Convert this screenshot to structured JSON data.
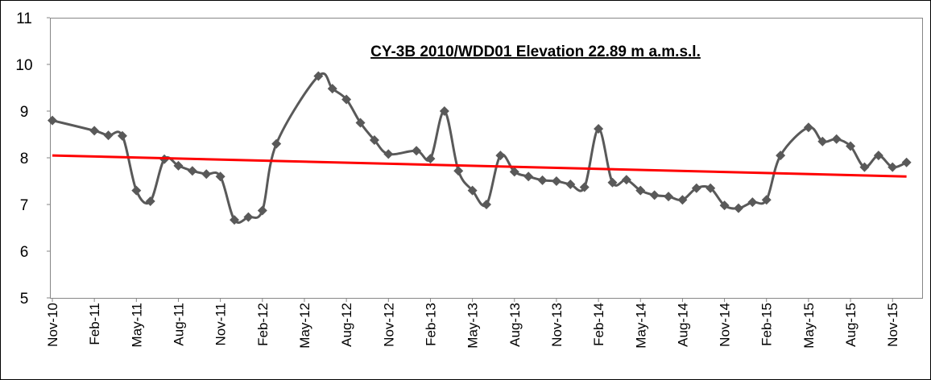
{
  "chart_data": {
    "type": "line",
    "title": "CY-3B 2010/WDD01 Elevation 22.89 m a.m.s.l.",
    "ylim": [
      5,
      11
    ],
    "yticks": [
      5,
      6,
      7,
      8,
      9,
      10,
      11
    ],
    "xlim": [
      "Nov-10",
      "Jan-16"
    ],
    "xticks": [
      "Nov-10",
      "Feb-11",
      "May-11",
      "Aug-11",
      "Nov-11",
      "Feb-12",
      "May-12",
      "Aug-12",
      "Nov-12",
      "Feb-13",
      "May-13",
      "Aug-13",
      "Nov-13",
      "Feb-14",
      "May-14",
      "Aug-14",
      "Nov-14",
      "Feb-15",
      "May-15",
      "Aug-15",
      "Nov-15"
    ],
    "series": [
      {
        "color": "#595959",
        "x": [
          "Nov-10",
          "Feb-11",
          "Mar-11",
          "Apr-11",
          "May-11",
          "Jun-11",
          "Jul-11",
          "Aug-11",
          "Sep-11",
          "Oct-11",
          "Nov-11",
          "Dec-11",
          "Jan-12",
          "Feb-12",
          "Mar-12",
          "Jun-12",
          "Jul-12",
          "Aug-12",
          "Sep-12",
          "Oct-12",
          "Nov-12",
          "Jan-13",
          "Feb-13",
          "Mar-13",
          "Apr-13",
          "May-13",
          "Jun-13",
          "Jul-13",
          "Aug-13",
          "Sep-13",
          "Oct-13",
          "Nov-13",
          "Dec-13",
          "Jan-14",
          "Feb-14",
          "Mar-14",
          "Apr-14",
          "May-14",
          "Jun-14",
          "Jul-14",
          "Aug-14",
          "Sep-14",
          "Oct-14",
          "Nov-14",
          "Dec-14",
          "Jan-15",
          "Feb-15",
          "Mar-15",
          "May-15",
          "Jun-15",
          "Jul-15",
          "Aug-15",
          "Sep-15",
          "Oct-15",
          "Nov-15",
          "Dec-15"
        ],
        "values": [
          8.8,
          8.58,
          8.48,
          8.47,
          7.3,
          7.07,
          7.97,
          7.83,
          7.72,
          7.65,
          7.6,
          6.67,
          6.73,
          6.87,
          8.3,
          9.75,
          9.48,
          9.25,
          8.75,
          8.38,
          8.08,
          8.15,
          7.98,
          9.0,
          7.72,
          7.3,
          7.0,
          8.05,
          7.7,
          7.6,
          7.52,
          7.5,
          7.43,
          7.37,
          8.62,
          7.47,
          7.53,
          7.3,
          7.2,
          7.17,
          7.1,
          7.35,
          7.35,
          6.98,
          6.92,
          7.05,
          7.1,
          8.05,
          8.65,
          8.35,
          8.4,
          8.25,
          7.8,
          8.05,
          7.8,
          7.9
        ]
      },
      {
        "color": "#ff0000",
        "x": [
          "Nov-10",
          "Dec-15"
        ],
        "values": [
          8.05,
          7.6
        ]
      }
    ]
  }
}
